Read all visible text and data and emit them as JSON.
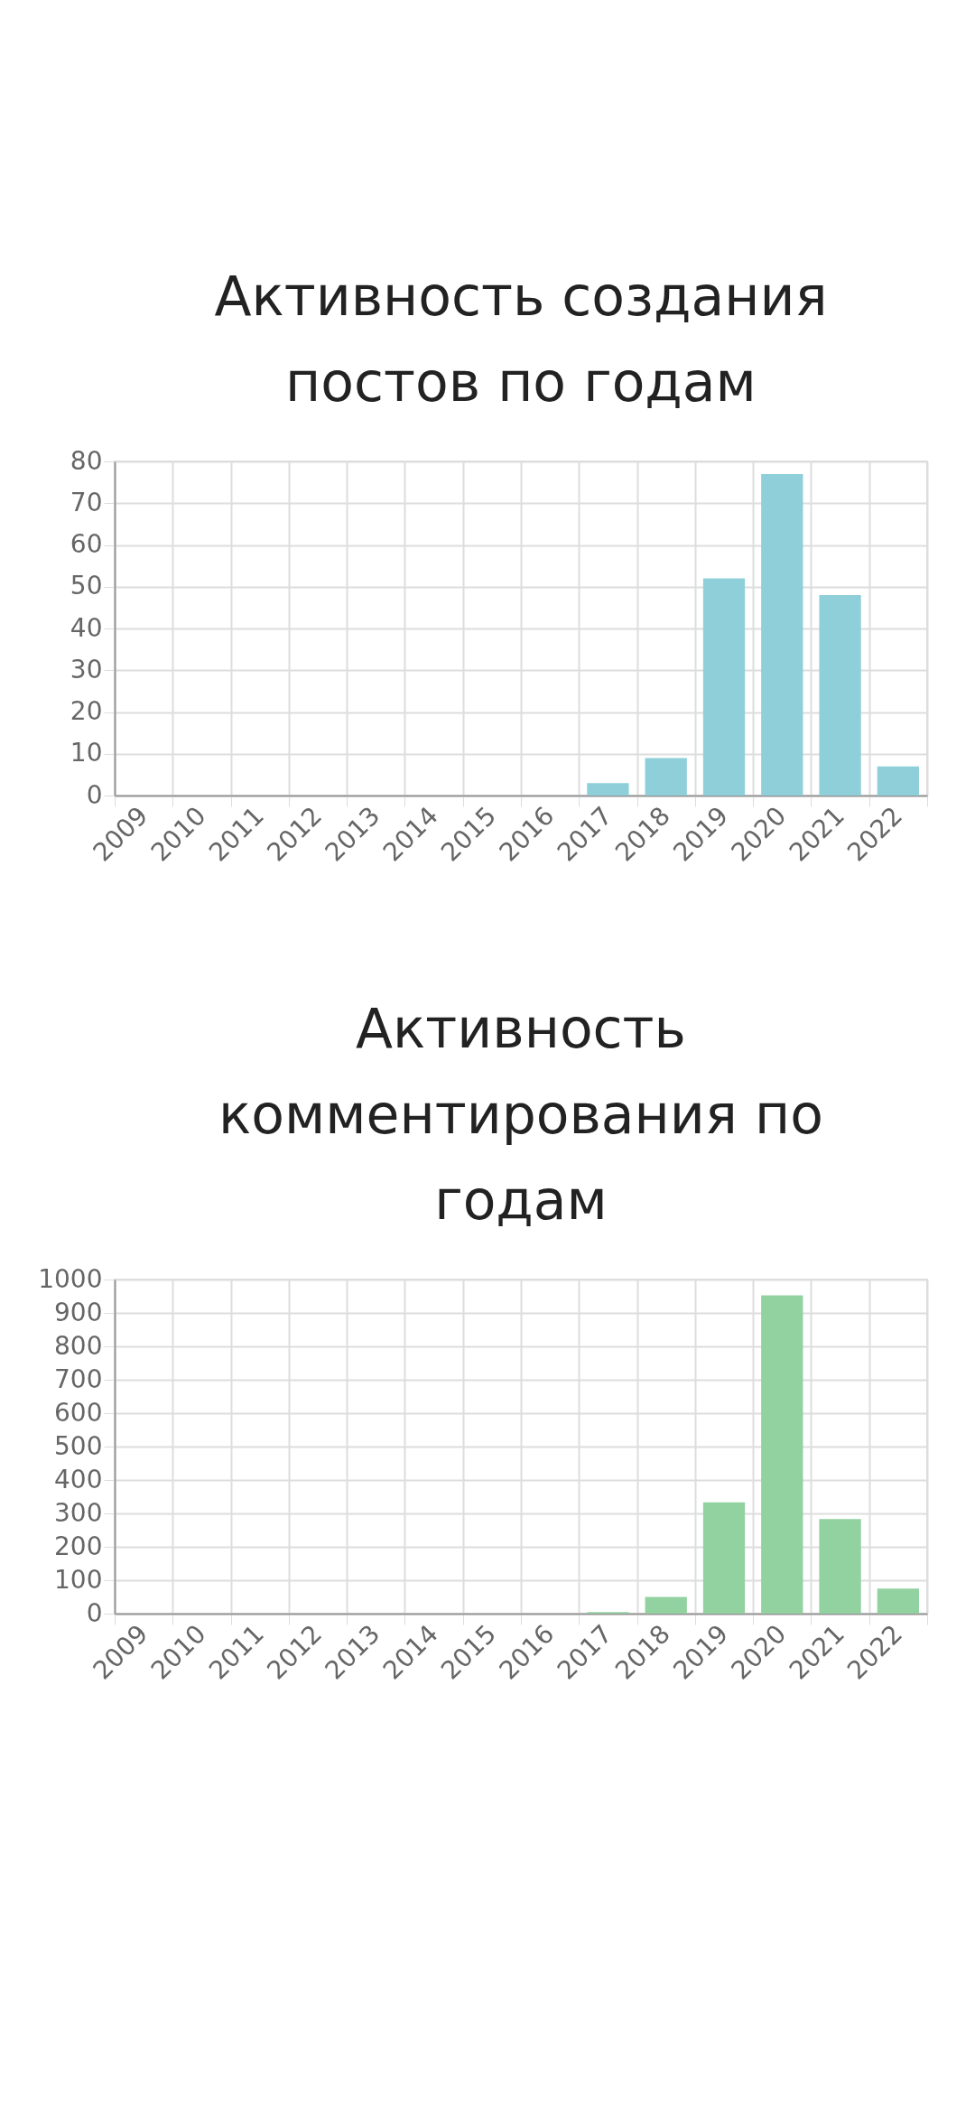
{
  "chart_data": [
    {
      "type": "bar",
      "title": "Активность создания постов по годам",
      "categories": [
        "2009",
        "2010",
        "2011",
        "2012",
        "2013",
        "2014",
        "2015",
        "2016",
        "2017",
        "2018",
        "2019",
        "2020",
        "2021",
        "2022"
      ],
      "values": [
        0,
        0,
        0,
        0,
        0,
        0,
        0,
        0,
        3,
        9,
        52,
        77,
        48,
        7
      ],
      "color": "#8ecfd9",
      "ylim": [
        0,
        80
      ],
      "yticks": [
        0,
        10,
        20,
        30,
        40,
        50,
        60,
        70,
        80
      ],
      "grid": true
    },
    {
      "type": "bar",
      "title": "Активность комментирования по годам",
      "categories": [
        "2009",
        "2010",
        "2011",
        "2012",
        "2013",
        "2014",
        "2015",
        "2016",
        "2017",
        "2018",
        "2019",
        "2020",
        "2021",
        "2022"
      ],
      "values": [
        0,
        0,
        0,
        0,
        0,
        0,
        0,
        0,
        5,
        50,
        333,
        953,
        283,
        75
      ],
      "color": "#92d1a0",
      "ylim": [
        0,
        1000
      ],
      "yticks": [
        0,
        100,
        200,
        300,
        400,
        500,
        600,
        700,
        800,
        900,
        1000
      ],
      "grid": true
    }
  ]
}
